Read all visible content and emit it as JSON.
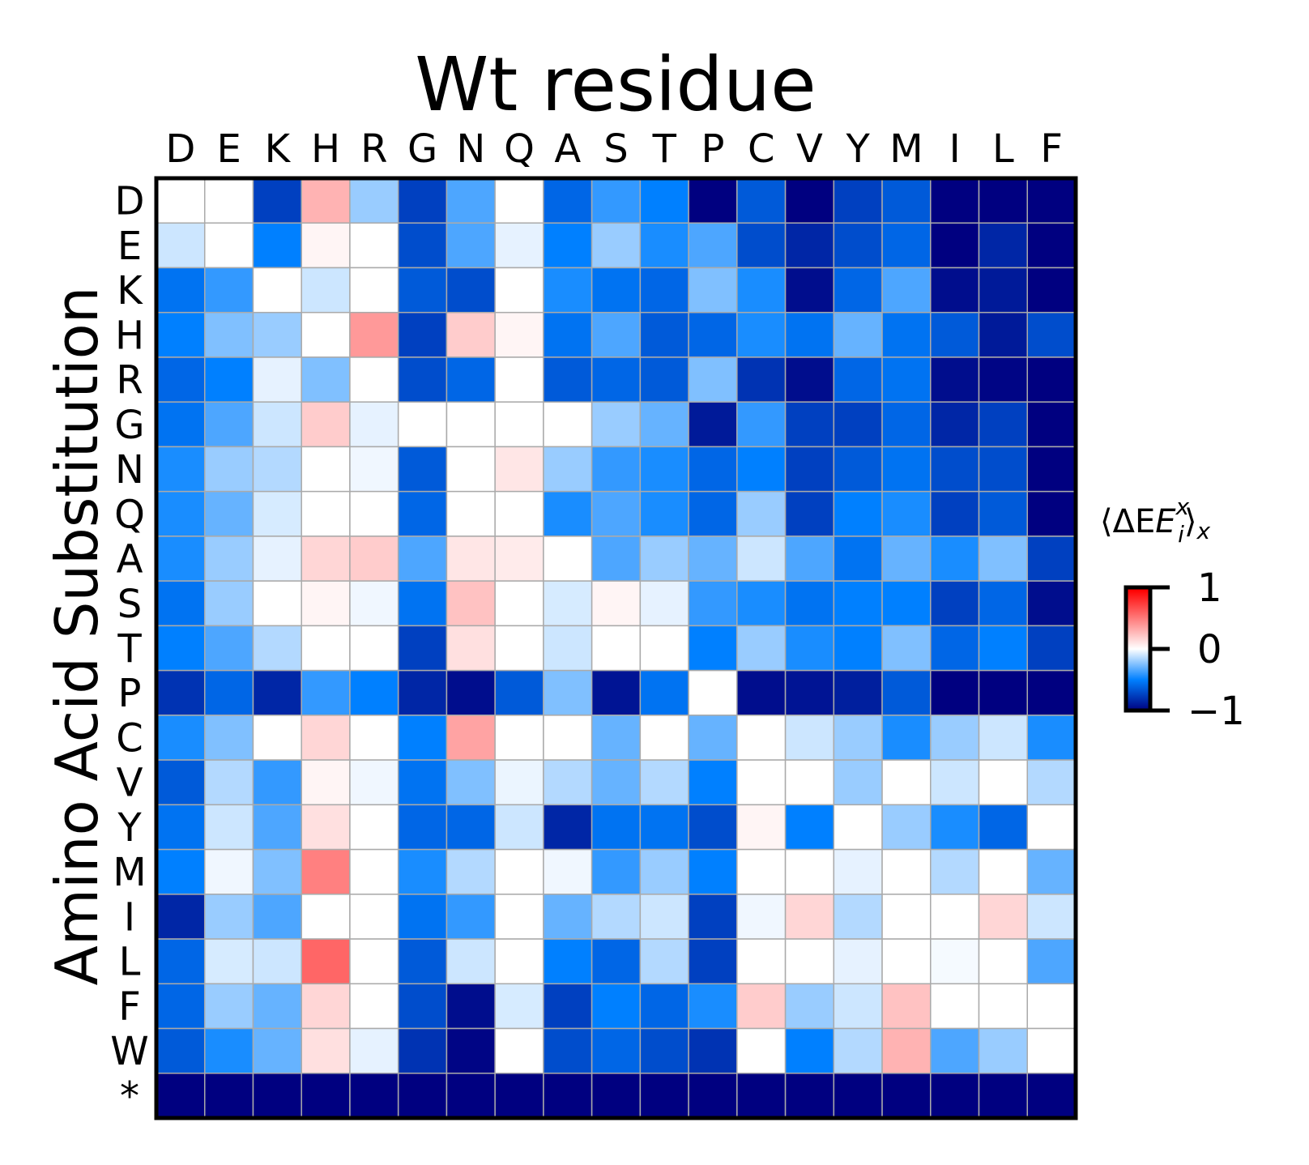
{
  "chart_data": {
    "type": "heatmap",
    "title": "Wt residue",
    "xlabel": "Wt residue",
    "ylabel": "Amino Acid Substitution",
    "x_categories": [
      "D",
      "E",
      "K",
      "H",
      "R",
      "G",
      "N",
      "Q",
      "A",
      "S",
      "T",
      "P",
      "C",
      "V",
      "Y",
      "M",
      "I",
      "L",
      "F"
    ],
    "y_categories": [
      "D",
      "E",
      "K",
      "H",
      "R",
      "G",
      "N",
      "Q",
      "A",
      "S",
      "T",
      "P",
      "C",
      "V",
      "Y",
      "M",
      "I",
      "L",
      "F",
      "W",
      "*"
    ],
    "colorbar": {
      "title": "⟨ΔE",
      "title_sup": "x",
      "title_sub": "i",
      "title_end": "⟩",
      "title_end_sub": "x",
      "ticks": [
        "1",
        "0",
        "−1"
      ],
      "range": [
        -1,
        1
      ],
      "colormap": "seismic"
    },
    "grid": true,
    "values": [
      [
        0.0,
        0.0,
        -0.75,
        0.15,
        -0.2,
        -0.75,
        -0.35,
        0.0,
        -0.6,
        -0.4,
        -0.5,
        -1.0,
        -0.65,
        -1.0,
        -0.75,
        -0.65,
        -1.0,
        -1.0,
        -1.0
      ],
      [
        -0.1,
        0.0,
        -0.5,
        0.02,
        0.0,
        -0.7,
        -0.35,
        -0.05,
        -0.5,
        -0.2,
        -0.45,
        -0.35,
        -0.7,
        -0.85,
        -0.7,
        -0.6,
        -1.0,
        -0.85,
        -1.0
      ],
      [
        -0.55,
        -0.4,
        0.0,
        -0.1,
        0.0,
        -0.65,
        -0.7,
        0.0,
        -0.45,
        -0.55,
        -0.6,
        -0.25,
        -0.45,
        -0.95,
        -0.6,
        -0.35,
        -0.95,
        -0.9,
        -1.0
      ],
      [
        -0.5,
        -0.25,
        -0.2,
        0.0,
        0.2,
        -0.75,
        0.1,
        0.02,
        -0.55,
        -0.35,
        -0.65,
        -0.6,
        -0.45,
        -0.55,
        -0.3,
        -0.55,
        -0.65,
        -0.9,
        -0.7
      ],
      [
        -0.6,
        -0.5,
        -0.05,
        -0.25,
        0.0,
        -0.7,
        -0.6,
        0.0,
        -0.65,
        -0.6,
        -0.65,
        -0.25,
        -0.8,
        -0.95,
        -0.6,
        -0.55,
        -0.95,
        -0.98,
        -1.0
      ],
      [
        -0.55,
        -0.35,
        -0.1,
        0.1,
        -0.05,
        0.0,
        0.0,
        0.0,
        0.0,
        -0.2,
        -0.3,
        -0.9,
        -0.4,
        -0.75,
        -0.75,
        -0.6,
        -0.85,
        -0.75,
        -1.0
      ],
      [
        -0.45,
        -0.2,
        -0.15,
        0.0,
        -0.03,
        -0.65,
        0.0,
        0.05,
        -0.2,
        -0.4,
        -0.45,
        -0.6,
        -0.5,
        -0.75,
        -0.65,
        -0.55,
        -0.7,
        -0.7,
        -1.0
      ],
      [
        -0.45,
        -0.3,
        -0.08,
        0.0,
        0.0,
        -0.6,
        0.0,
        0.0,
        -0.45,
        -0.35,
        -0.45,
        -0.6,
        -0.2,
        -0.75,
        -0.5,
        -0.45,
        -0.75,
        -0.65,
        -1.0
      ],
      [
        -0.45,
        -0.2,
        -0.05,
        0.08,
        0.1,
        -0.35,
        0.05,
        0.04,
        0.0,
        -0.35,
        -0.2,
        -0.3,
        -0.1,
        -0.35,
        -0.55,
        -0.3,
        -0.45,
        -0.25,
        -0.75
      ],
      [
        -0.55,
        -0.2,
        0.0,
        0.02,
        -0.03,
        -0.55,
        0.12,
        0.0,
        -0.08,
        0.02,
        -0.05,
        -0.4,
        -0.45,
        -0.55,
        -0.5,
        -0.5,
        -0.75,
        -0.6,
        -0.95
      ],
      [
        -0.5,
        -0.35,
        -0.15,
        0.0,
        0.0,
        -0.75,
        0.06,
        0.0,
        -0.1,
        0.0,
        0.0,
        -0.5,
        -0.2,
        -0.45,
        -0.5,
        -0.25,
        -0.6,
        -0.5,
        -0.75
      ],
      [
        -0.8,
        -0.6,
        -0.85,
        -0.4,
        -0.5,
        -0.85,
        -0.95,
        -0.65,
        -0.25,
        -0.92,
        -0.55,
        0.0,
        -0.95,
        -0.92,
        -0.88,
        -0.65,
        -1.0,
        -1.0,
        -1.0
      ],
      [
        -0.45,
        -0.25,
        0.0,
        0.08,
        0.0,
        -0.5,
        0.18,
        0.0,
        0.0,
        -0.3,
        0.0,
        -0.3,
        0.0,
        -0.1,
        -0.2,
        -0.45,
        -0.2,
        -0.1,
        -0.45
      ],
      [
        -0.65,
        -0.15,
        -0.4,
        0.02,
        -0.03,
        -0.55,
        -0.25,
        -0.04,
        -0.15,
        -0.3,
        -0.15,
        -0.5,
        0.0,
        0.0,
        -0.2,
        0.0,
        -0.1,
        0.0,
        -0.15
      ],
      [
        -0.55,
        -0.1,
        -0.35,
        0.06,
        0.0,
        -0.6,
        -0.6,
        -0.1,
        -0.85,
        -0.55,
        -0.55,
        -0.7,
        0.02,
        -0.5,
        0.0,
        -0.2,
        -0.45,
        -0.6,
        0.0
      ],
      [
        -0.5,
        -0.03,
        -0.25,
        0.25,
        0.0,
        -0.45,
        -0.15,
        0.0,
        -0.03,
        -0.4,
        -0.2,
        -0.5,
        0.0,
        0.0,
        -0.05,
        0.0,
        -0.15,
        0.0,
        -0.3
      ],
      [
        -0.85,
        -0.2,
        -0.35,
        0.0,
        0.0,
        -0.55,
        -0.4,
        0.0,
        -0.3,
        -0.15,
        -0.1,
        -0.75,
        -0.03,
        0.08,
        -0.15,
        0.0,
        0.0,
        0.08,
        -0.1
      ],
      [
        -0.6,
        -0.08,
        -0.1,
        0.3,
        0.0,
        -0.65,
        -0.1,
        0.0,
        -0.5,
        -0.6,
        -0.15,
        -0.75,
        0.0,
        0.0,
        -0.05,
        0.0,
        -0.02,
        0.0,
        -0.35
      ],
      [
        -0.6,
        -0.2,
        -0.3,
        0.08,
        0.0,
        -0.7,
        -0.95,
        -0.08,
        -0.75,
        -0.5,
        -0.6,
        -0.45,
        0.1,
        -0.2,
        -0.1,
        0.12,
        0.0,
        0.0,
        0.0
      ],
      [
        -0.65,
        -0.45,
        -0.3,
        0.06,
        -0.05,
        -0.8,
        -0.98,
        0.0,
        -0.7,
        -0.6,
        -0.7,
        -0.8,
        0.0,
        -0.5,
        -0.15,
        0.15,
        -0.35,
        -0.2,
        0.0
      ],
      [
        -1.0,
        -1.0,
        -1.0,
        -1.0,
        -1.0,
        -1.0,
        -1.0,
        -1.0,
        -1.0,
        -1.0,
        -1.0,
        -1.0,
        -1.0,
        -1.0,
        -1.0,
        -1.0,
        -1.0,
        -1.0,
        -1.0
      ]
    ]
  }
}
